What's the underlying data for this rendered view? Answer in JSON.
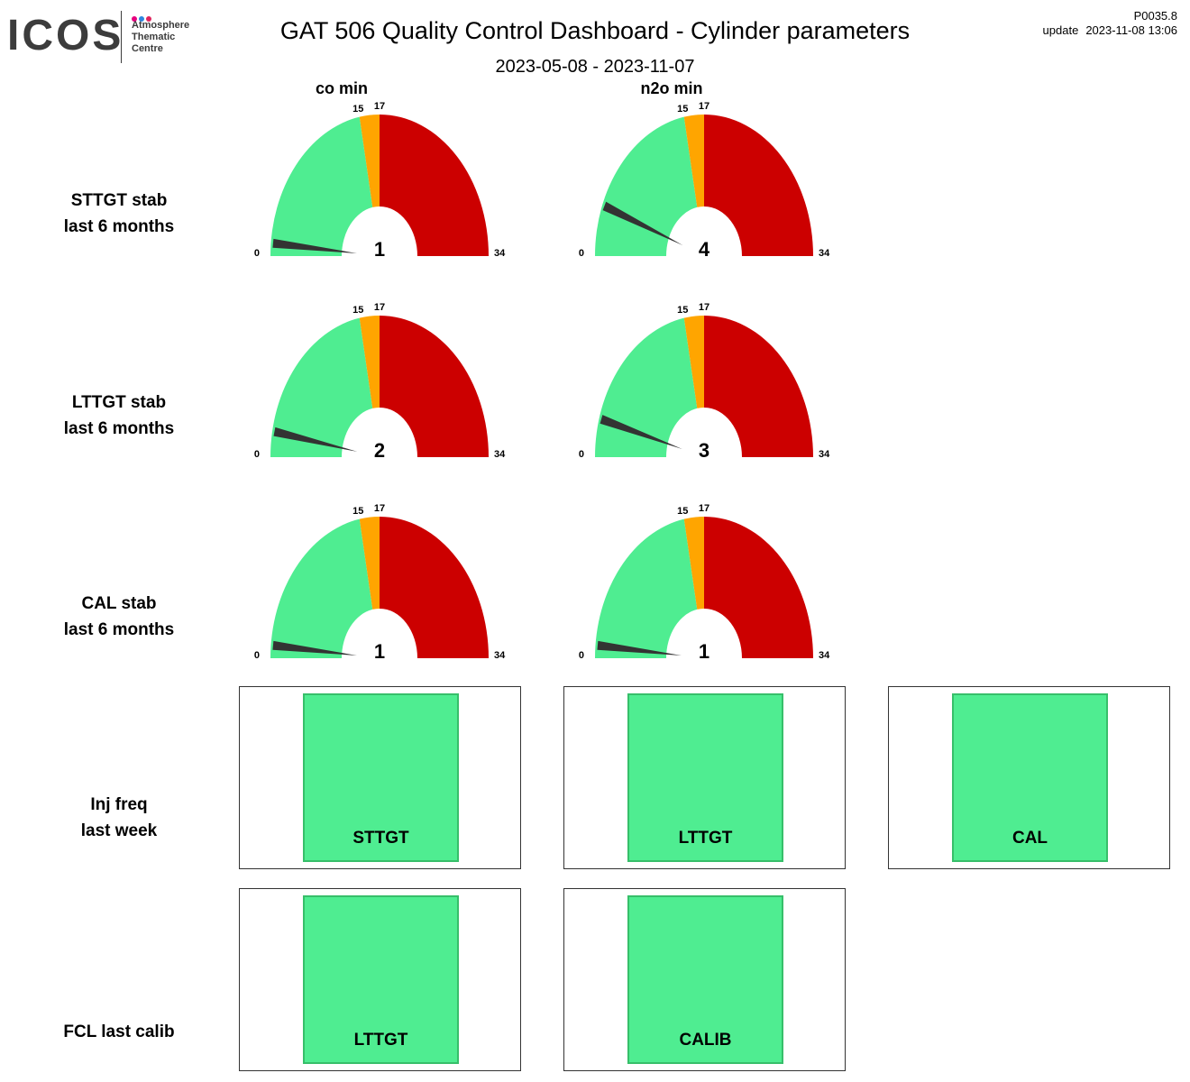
{
  "header": {
    "logo": {
      "word": "ICOS",
      "line1": "Atmosphere",
      "line2": "Thematic",
      "line3": "Centre",
      "dot_colors": [
        "#e6007e",
        "#2e86de",
        "#e0245e"
      ]
    },
    "title": "GAT 506 Quality Control Dashboard - Cylinder parameters",
    "date_range": "2023-05-08 - 2023-11-07",
    "code": "P0035.8",
    "update_label": "update",
    "update_time": "2023-11-08 13:06"
  },
  "columns": [
    "co min",
    "n2o min"
  ],
  "rows": [
    {
      "line1": "STTGT stab",
      "line2": "last 6 months"
    },
    {
      "line1": "LTTGT stab",
      "line2": "last 6 months"
    },
    {
      "line1": "CAL stab",
      "line2": "last 6 months"
    },
    {
      "line1": "Inj freq",
      "line2": "last week"
    },
    {
      "line1": "FCL last calib",
      "line2": ""
    }
  ],
  "colors": {
    "green": "#4fed91",
    "orange": "#ffa500",
    "red": "#cc0000",
    "needle": "#333333",
    "status_ok": "#4fed91"
  },
  "chart_data": {
    "type": "gauge",
    "range": [
      0,
      34
    ],
    "tick_labels": [
      "0",
      "15",
      "17",
      "34"
    ],
    "bands": [
      {
        "from": 0,
        "to": 15,
        "color": "#4fed91"
      },
      {
        "from": 15,
        "to": 17,
        "color": "#ffa500"
      },
      {
        "from": 17,
        "to": 34,
        "color": "#cc0000"
      }
    ],
    "gauges": [
      {
        "row": "STTGT stab",
        "column": "co min",
        "value": 1
      },
      {
        "row": "STTGT stab",
        "column": "n2o min",
        "value": 4
      },
      {
        "row": "LTTGT stab",
        "column": "co min",
        "value": 2
      },
      {
        "row": "LTTGT stab",
        "column": "n2o min",
        "value": 3
      },
      {
        "row": "CAL stab",
        "column": "co min",
        "value": 1
      },
      {
        "row": "CAL stab",
        "column": "n2o min",
        "value": 1
      }
    ]
  },
  "status_panels": {
    "inj_freq": [
      {
        "label": "STTGT",
        "status": "ok"
      },
      {
        "label": "LTTGT",
        "status": "ok"
      },
      {
        "label": "CAL",
        "status": "ok"
      }
    ],
    "fcl_last_calib": [
      {
        "label": "LTTGT",
        "status": "ok"
      },
      {
        "label": "CALIB",
        "status": "ok"
      }
    ]
  }
}
